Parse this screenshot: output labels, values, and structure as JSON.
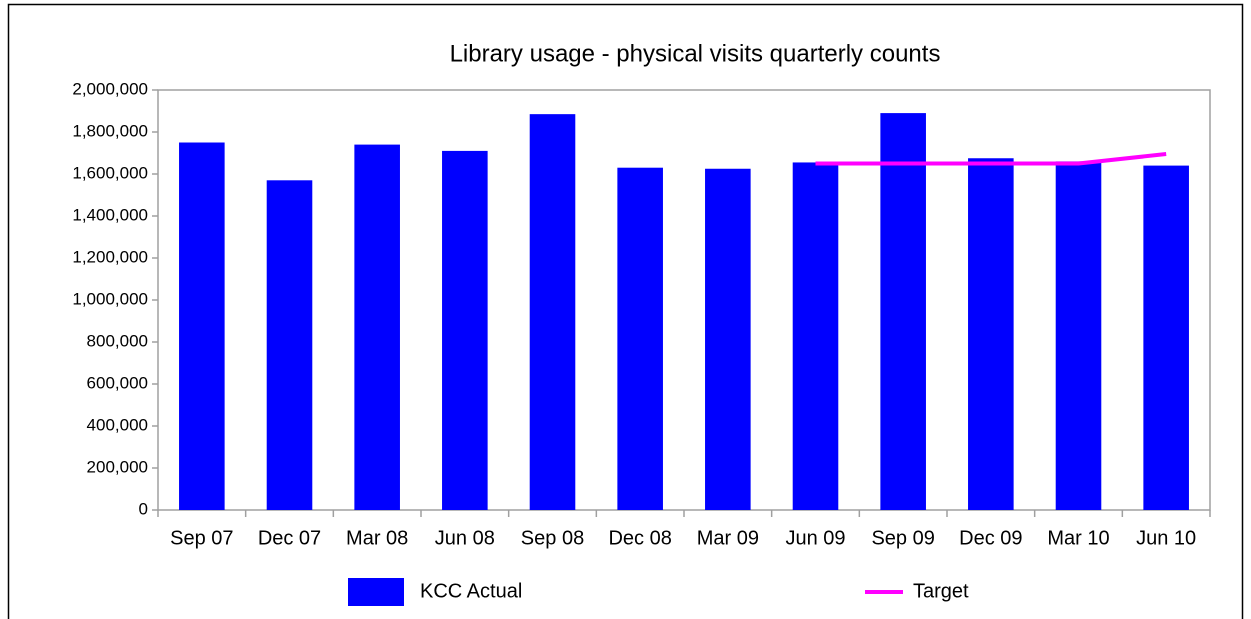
{
  "chart_data": {
    "type": "bar",
    "title": "Library usage - physical visits quarterly counts",
    "categories": [
      "Sep 07",
      "Dec 07",
      "Mar 08",
      "Jun 08",
      "Sep 08",
      "Dec 08",
      "Mar 09",
      "Jun 09",
      "Sep 09",
      "Dec 09",
      "Mar 10",
      "Jun 10"
    ],
    "series": [
      {
        "name": "KCC Actual",
        "type": "bar",
        "color": "#0000ff",
        "values": [
          1750000,
          1570000,
          1740000,
          1710000,
          1885000,
          1630000,
          1625000,
          1655000,
          1890000,
          1675000,
          1660000,
          1640000
        ]
      },
      {
        "name": "Target",
        "type": "line",
        "color": "#ff00ff",
        "values": [
          null,
          null,
          null,
          null,
          null,
          null,
          null,
          1650000,
          1650000,
          1650000,
          1650000,
          1695000
        ]
      }
    ],
    "ylim": [
      0,
      2000000
    ],
    "yticks": [
      0,
      {
        "value": 200000,
        "label": "200,000"
      },
      {
        "value": 400000,
        "label": "400,000"
      },
      {
        "value": 600000,
        "label": "600,000"
      },
      {
        "value": 800000,
        "label": "800,000"
      },
      {
        "value": 1000000,
        "label": "1,000,000"
      },
      {
        "value": 1200000,
        "label": "1,200,000"
      },
      {
        "value": 1400000,
        "label": "1,400,000"
      },
      {
        "value": 1600000,
        "label": "1,600,000"
      },
      {
        "value": 1800000,
        "label": "1,800,000"
      },
      {
        "value": 2000000,
        "label": "2,000,000"
      }
    ],
    "grid": false,
    "legend": "bottom"
  }
}
